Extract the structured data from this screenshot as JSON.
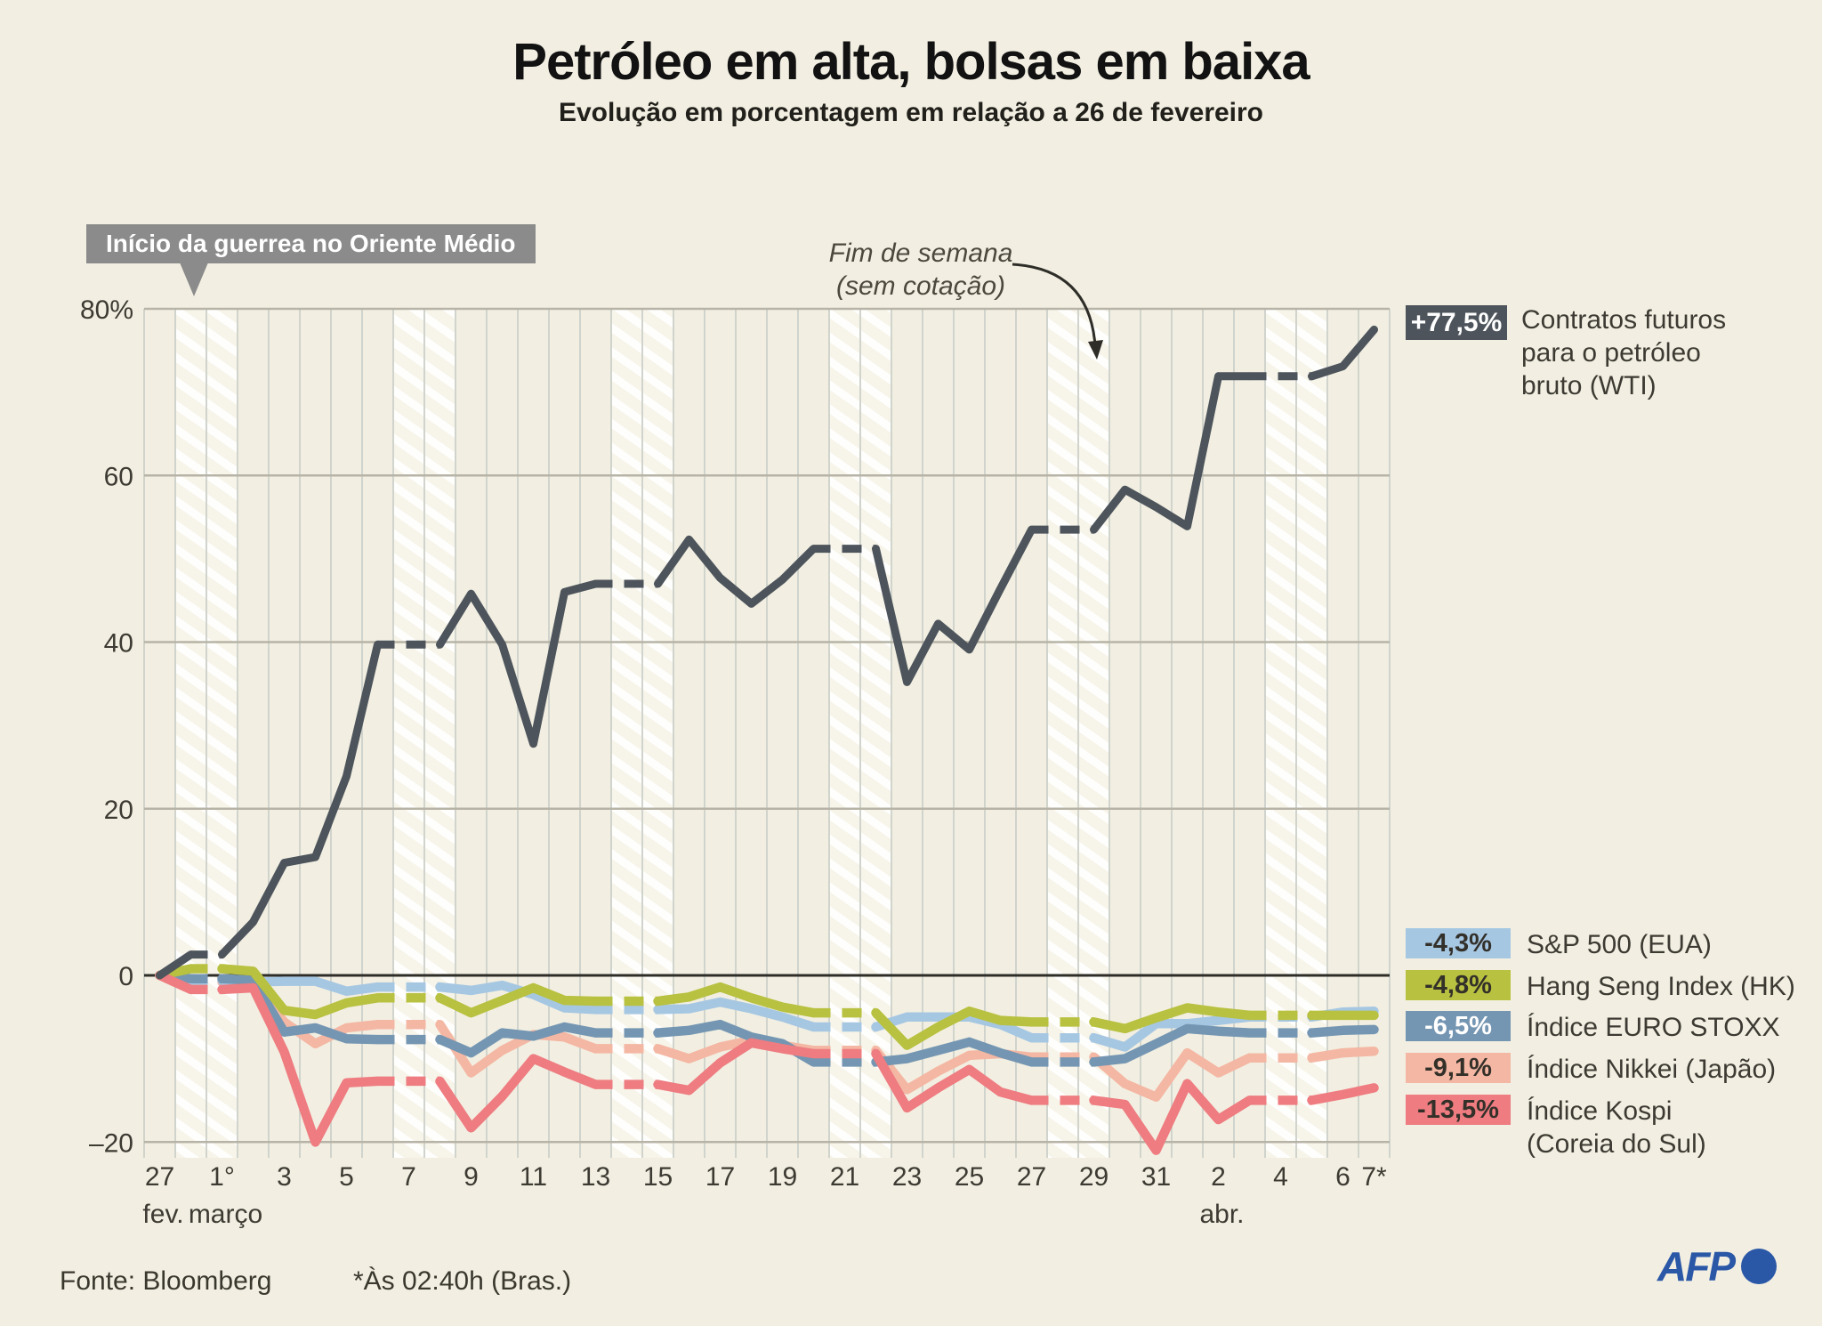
{
  "title": "Petróleo em alta, bolsas em baixa",
  "subtitle": "Evolução em porcentagem em relação a 26 de fevereiro",
  "callout": {
    "text": "Início da guerrea no Oriente Médio"
  },
  "annotation": {
    "line1": "Fim de semana",
    "line2": "(sem cotação)"
  },
  "legend": {
    "wti": {
      "badge": "+77,5%",
      "color": "#4d545b",
      "text_color": "#ffffff",
      "label_lines": [
        "Contratos futuros",
        "para o petróleo",
        "bruto (WTI)"
      ]
    },
    "indices": [
      {
        "badge": "-4,3%",
        "label": "S&P 500 (EUA)",
        "label2": "",
        "color": "#a6c7e2",
        "text_color": "#33302a"
      },
      {
        "badge": "-4,8%",
        "label": "Hang Seng Index (HK)",
        "label2": "",
        "color": "#b8c140",
        "text_color": "#33302a"
      },
      {
        "badge": "-6,5%",
        "label": "Índice EURO STOXX",
        "label2": "",
        "color": "#7596b2",
        "text_color": "#ffffff"
      },
      {
        "badge": "-9,1%",
        "label": "Índice Nikkei (Japão)",
        "label2": "",
        "color": "#f4b7a3",
        "text_color": "#33302a"
      },
      {
        "badge": "-13,5%",
        "label": "Índice Kospi",
        "label2": "(Coreia do Sul)",
        "color": "#ee7c80",
        "text_color": "#33302a"
      }
    ]
  },
  "footer": {
    "source": "Fonte: Bloomberg",
    "note": "*Às 02:40h (Bras.)",
    "logo": "AFP"
  },
  "chart_data": {
    "type": "line",
    "title": "Petróleo em alta, bolsas em baixa",
    "xlabel": "",
    "ylabel": "%",
    "ylim": [
      -20,
      80
    ],
    "grid": true,
    "legend_position": "right",
    "x_days_from_feb27": 40,
    "weekend_day_starts": [
      1,
      8,
      15,
      22,
      29,
      36
    ],
    "y_ticks": [
      {
        "v": 80,
        "label": "80%"
      },
      {
        "v": 60,
        "label": "60"
      },
      {
        "v": 40,
        "label": "40"
      },
      {
        "v": 20,
        "label": "20"
      },
      {
        "v": 0,
        "label": "0"
      },
      {
        "v": -20,
        "label": "–20"
      }
    ],
    "x_ticks": [
      {
        "d": 0,
        "label": "27"
      },
      {
        "d": 2,
        "label": "1°"
      },
      {
        "d": 4,
        "label": "3"
      },
      {
        "d": 6,
        "label": "5"
      },
      {
        "d": 8,
        "label": "7"
      },
      {
        "d": 10,
        "label": "9"
      },
      {
        "d": 12,
        "label": "11"
      },
      {
        "d": 14,
        "label": "13"
      },
      {
        "d": 16,
        "label": "15"
      },
      {
        "d": 18,
        "label": "17"
      },
      {
        "d": 20,
        "label": "19"
      },
      {
        "d": 22,
        "label": "21"
      },
      {
        "d": 24,
        "label": "23"
      },
      {
        "d": 26,
        "label": "25"
      },
      {
        "d": 28,
        "label": "27"
      },
      {
        "d": 30,
        "label": "29"
      },
      {
        "d": 32,
        "label": "31"
      },
      {
        "d": 34,
        "label": "2"
      },
      {
        "d": 36,
        "label": "4"
      },
      {
        "d": 38,
        "label": "6"
      },
      {
        "d": 39,
        "label": "7*"
      }
    ],
    "month_labels": [
      {
        "d": 0,
        "label": "fev."
      },
      {
        "d": 2,
        "label": "março"
      },
      {
        "d": 34,
        "label": "abr."
      }
    ],
    "series": [
      {
        "name": "nikkei",
        "display": "Índice Nikkei (Japão)",
        "final": "-9,1%",
        "color": "#f4b7a3",
        "width": 10.5,
        "values": [
          0,
          -0.8,
          -0.8,
          -1.0,
          -5.6,
          -8.2,
          -6.3,
          -5.9,
          -5.9,
          -5.9,
          -11.7,
          -9.0,
          -7.1,
          -7.4,
          -8.8,
          -8.8,
          -8.8,
          -10.0,
          -8.6,
          -7.8,
          -8.4,
          -9.0,
          -9.0,
          -9.0,
          -13.7,
          -11.5,
          -9.6,
          -9.4,
          -9.8,
          -9.8,
          -9.8,
          -13.0,
          -14.6,
          -9.3,
          -11.7,
          -9.9,
          -9.9,
          -9.9,
          -9.3,
          -9.1
        ]
      },
      {
        "name": "sp500",
        "display": "S&P 500 (EUA)",
        "final": "-4,3%",
        "color": "#a6c7e2",
        "width": 10.5,
        "values": [
          0,
          -0.6,
          -0.6,
          -0.8,
          -0.7,
          -0.7,
          -1.9,
          -1.4,
          -1.4,
          -1.4,
          -1.8,
          -1.2,
          -2.3,
          -3.9,
          -4.1,
          -4.1,
          -4.1,
          -4.0,
          -3.2,
          -4.0,
          -5.0,
          -6.2,
          -6.2,
          -6.2,
          -5.0,
          -5.0,
          -5.0,
          -5.9,
          -7.5,
          -7.5,
          -7.5,
          -8.6,
          -5.8,
          -5.8,
          -5.4,
          -5.0,
          -5.0,
          -5.0,
          -4.4,
          -4.3
        ]
      },
      {
        "name": "eurostoxx",
        "display": "Índice EURO STOXX",
        "final": "-6,5%",
        "color": "#7596b2",
        "width": 10.5,
        "values": [
          0,
          -0.4,
          -0.4,
          -0.6,
          -6.8,
          -6.3,
          -7.6,
          -7.7,
          -7.7,
          -7.7,
          -9.3,
          -6.9,
          -7.3,
          -6.2,
          -6.9,
          -6.9,
          -6.9,
          -6.6,
          -5.9,
          -7.4,
          -8.2,
          -10.4,
          -10.4,
          -10.4,
          -10.0,
          -9.0,
          -8.0,
          -9.3,
          -10.4,
          -10.4,
          -10.4,
          -10.0,
          -8.2,
          -6.4,
          -6.7,
          -6.9,
          -6.9,
          -6.9,
          -6.6,
          -6.5
        ]
      },
      {
        "name": "hangseng",
        "display": "Hang Seng Index (HK)",
        "final": "-4,8%",
        "color": "#b8c140",
        "width": 10.5,
        "values": [
          0,
          0.8,
          0.8,
          0.5,
          -4.2,
          -4.7,
          -3.3,
          -2.7,
          -2.7,
          -2.7,
          -4.5,
          -3.0,
          -1.5,
          -3.0,
          -3.1,
          -3.1,
          -3.1,
          -2.6,
          -1.4,
          -2.7,
          -3.8,
          -4.5,
          -4.5,
          -4.5,
          -8.4,
          -6.2,
          -4.3,
          -5.4,
          -5.6,
          -5.6,
          -5.6,
          -6.4,
          -5.1,
          -3.9,
          -4.4,
          -4.8,
          -4.8,
          -4.8,
          -4.8,
          -4.8
        ]
      },
      {
        "name": "kospi",
        "display": "Índice Kospi (Coreia do Sul)",
        "final": "-13,5%",
        "color": "#ee7c80",
        "width": 10.5,
        "values": [
          0,
          -1.7,
          -1.7,
          -1.5,
          -9.2,
          -20.0,
          -12.9,
          -12.7,
          -12.7,
          -12.7,
          -18.3,
          -14.5,
          -10.0,
          -11.6,
          -13.1,
          -13.1,
          -13.1,
          -13.8,
          -10.5,
          -8.1,
          -8.8,
          -9.4,
          -9.4,
          -9.4,
          -15.9,
          -13.5,
          -11.3,
          -14.0,
          -15.0,
          -15.0,
          -15.0,
          -15.5,
          -21.0,
          -13.0,
          -17.3,
          -15.0,
          -15.0,
          -15.0,
          -14.3,
          -13.5
        ]
      },
      {
        "name": "wti",
        "display": "Contratos futuros para o petróleo bruto (WTI)",
        "final": "+77,5%",
        "color": "#4d545b",
        "width": 9,
        "values": [
          0,
          2.5,
          2.5,
          6.4,
          13.5,
          14.2,
          23.9,
          39.7,
          39.7,
          39.7,
          45.8,
          39.7,
          27.8,
          46.0,
          47.0,
          47.0,
          47.0,
          52.3,
          47.7,
          44.6,
          47.5,
          51.2,
          51.2,
          51.2,
          35.2,
          42.2,
          39.1,
          46.4,
          53.5,
          53.5,
          53.5,
          58.3,
          56.2,
          53.9,
          71.9,
          71.9,
          71.9,
          71.9,
          73.1,
          77.5
        ]
      }
    ],
    "colors": {
      "background": "#f2efe2",
      "weekend_band": "#f7f4e9",
      "weekend_stripe": "#ffffff",
      "vertical_grid": "#d0d4cd",
      "horizontal_grid": "#b7b3a6",
      "zero_line": "#2e2d28",
      "axis_text": "#3d3a33"
    }
  }
}
